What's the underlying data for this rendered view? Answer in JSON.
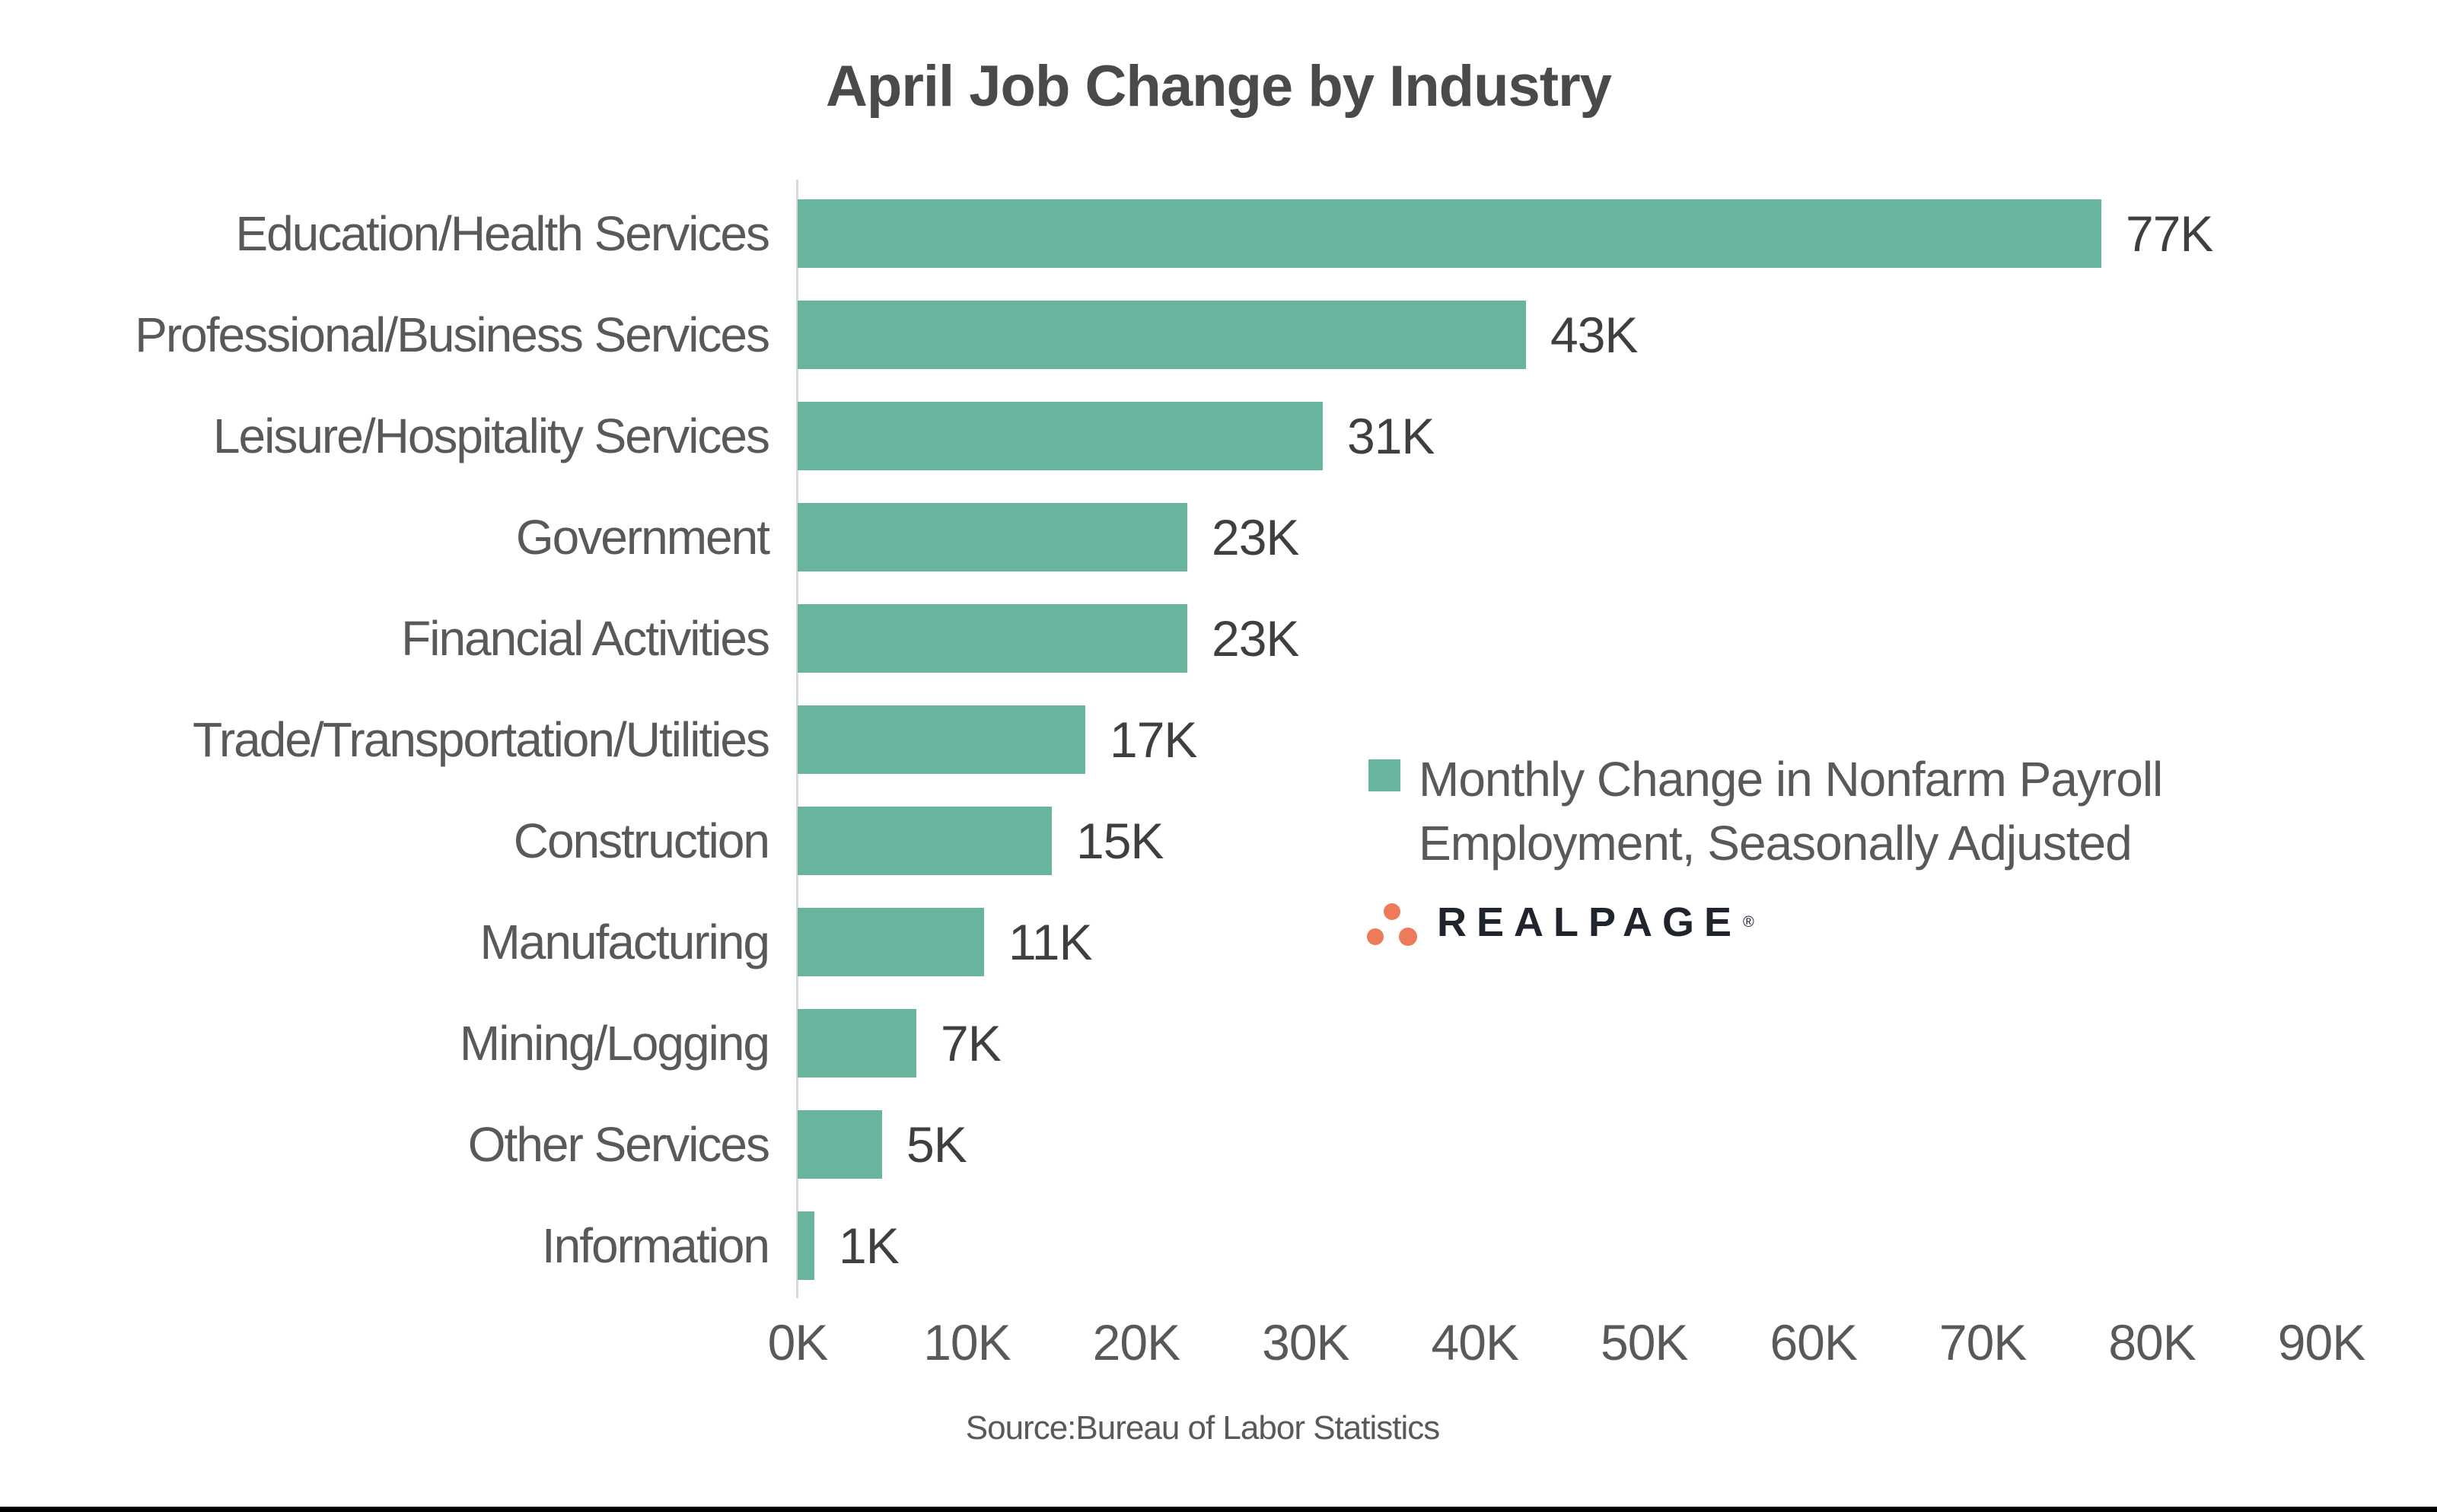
{
  "chart_data": {
    "type": "bar",
    "orientation": "horizontal",
    "title": "April Job Change by Industry",
    "categories": [
      "Education/Health Services",
      "Professional/Business Services",
      "Leisure/Hospitality Services",
      "Government",
      "Financial Activities",
      "Trade/Transportation/Utilities",
      "Construction",
      "Manufacturing",
      "Mining/Logging",
      "Other Services",
      "Information"
    ],
    "values": [
      77,
      43,
      31,
      23,
      23,
      17,
      15,
      11,
      7,
      5,
      1
    ],
    "value_labels": [
      "77K",
      "43K",
      "31K",
      "23K",
      "23K",
      "17K",
      "15K",
      "11K",
      "7K",
      "5K",
      "1K"
    ],
    "unit": "K",
    "xlim": [
      0,
      90
    ],
    "x_ticks": [
      "0K",
      "10K",
      "20K",
      "30K",
      "40K",
      "50K",
      "60K",
      "70K",
      "80K",
      "90K"
    ],
    "grid": false,
    "legend_position": "right-center",
    "bar_color": "#69B49E"
  },
  "legend": {
    "text": "Monthly Change in Nonfarm Payroll Employment, Seasonally Adjusted",
    "marker_color": "#69B49E"
  },
  "logo": {
    "text": "REALPAGE",
    "registered_mark": "®",
    "dot_color": "#ED7B59"
  },
  "source": {
    "text": "Source:Bureau of Labor Statistics"
  },
  "colors": {
    "bar": "#69B49E",
    "title_text": "#4A4A4A",
    "category_text": "#595959",
    "value_text": "#3F3F3F",
    "tick_text": "#595959",
    "axis_line": "#D9D9D9",
    "legend_text": "#595959",
    "logo_text": "#20242D",
    "logo_dots": "#ED7B59",
    "source_text": "#595959",
    "bottom_rule": "#000000",
    "background": "#FFFFFF"
  }
}
